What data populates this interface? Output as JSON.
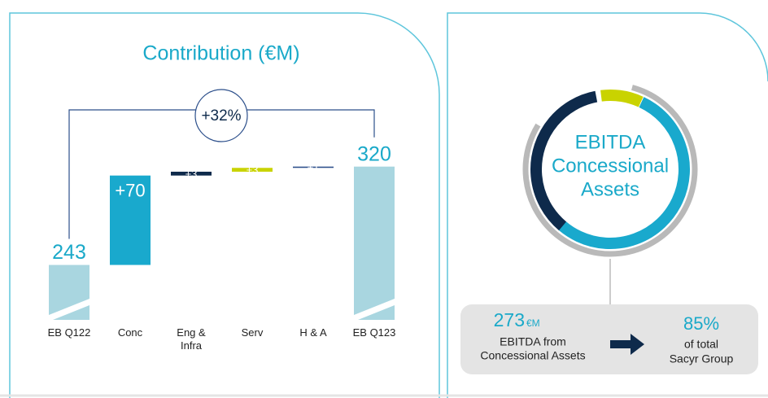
{
  "chart_data": {
    "type": "waterfall",
    "title": "Contribution (€M)",
    "categories": [
      "EB Q122",
      "Conc",
      "Eng &\nInfra",
      "Serv",
      "H & A",
      "EB Q123"
    ],
    "values": [
      243,
      70,
      3,
      3,
      1,
      320
    ],
    "value_labels": [
      "243",
      "+70",
      "+3",
      "+3",
      "+1",
      "320"
    ],
    "kinds": [
      "total",
      "delta",
      "delta",
      "delta",
      "delta",
      "total"
    ],
    "colors": [
      "#a9d6e0",
      "#19a9cd",
      "#0e2a4b",
      "#c9d300",
      "#2c4f8b",
      "#a9d6e0"
    ],
    "ylim": [
      200,
      330
    ],
    "annotation": "+32%"
  },
  "panel": {
    "title_lines": [
      "EBITDA",
      "Concessional",
      "Assets"
    ],
    "amount": "273",
    "unit": "€M",
    "amount_caption": [
      "EBITDA from",
      "Concessional Assets"
    ],
    "share": "85%",
    "share_caption": [
      "of total",
      "Sacyr Group"
    ]
  }
}
